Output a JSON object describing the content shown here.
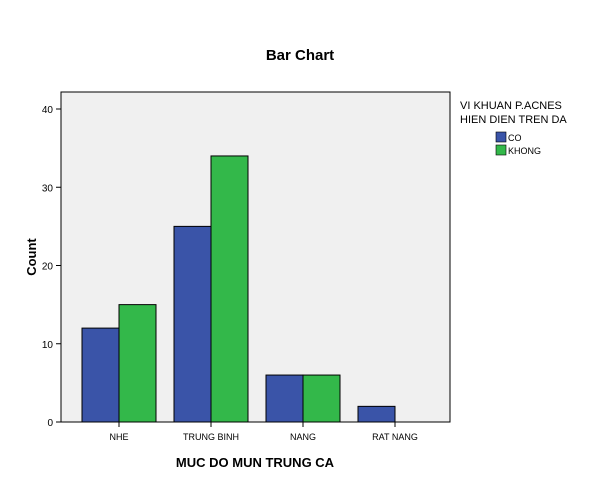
{
  "chart_data": {
    "type": "bar",
    "title": "Bar Chart",
    "xlabel": "MUC DO MUN TRUNG CA",
    "ylabel": "Count",
    "categories": [
      "NHE",
      "TRUNG BINH",
      "NANG",
      "RAT NANG"
    ],
    "series": [
      {
        "name": "CO",
        "values": [
          12,
          25,
          6,
          2
        ],
        "color": "#3a54a8"
      },
      {
        "name": "KHONG",
        "values": [
          15,
          34,
          6,
          0
        ],
        "color": "#33b84a"
      }
    ],
    "ylim": [
      0,
      40
    ],
    "yticks": [
      0,
      10,
      20,
      30,
      40
    ],
    "legend": {
      "title_lines": [
        "VI KHUAN P.ACNES",
        "HIEN DIEN TREN DA"
      ],
      "placement": "right"
    },
    "grid": false,
    "plot_background": "#f0f0f0"
  }
}
